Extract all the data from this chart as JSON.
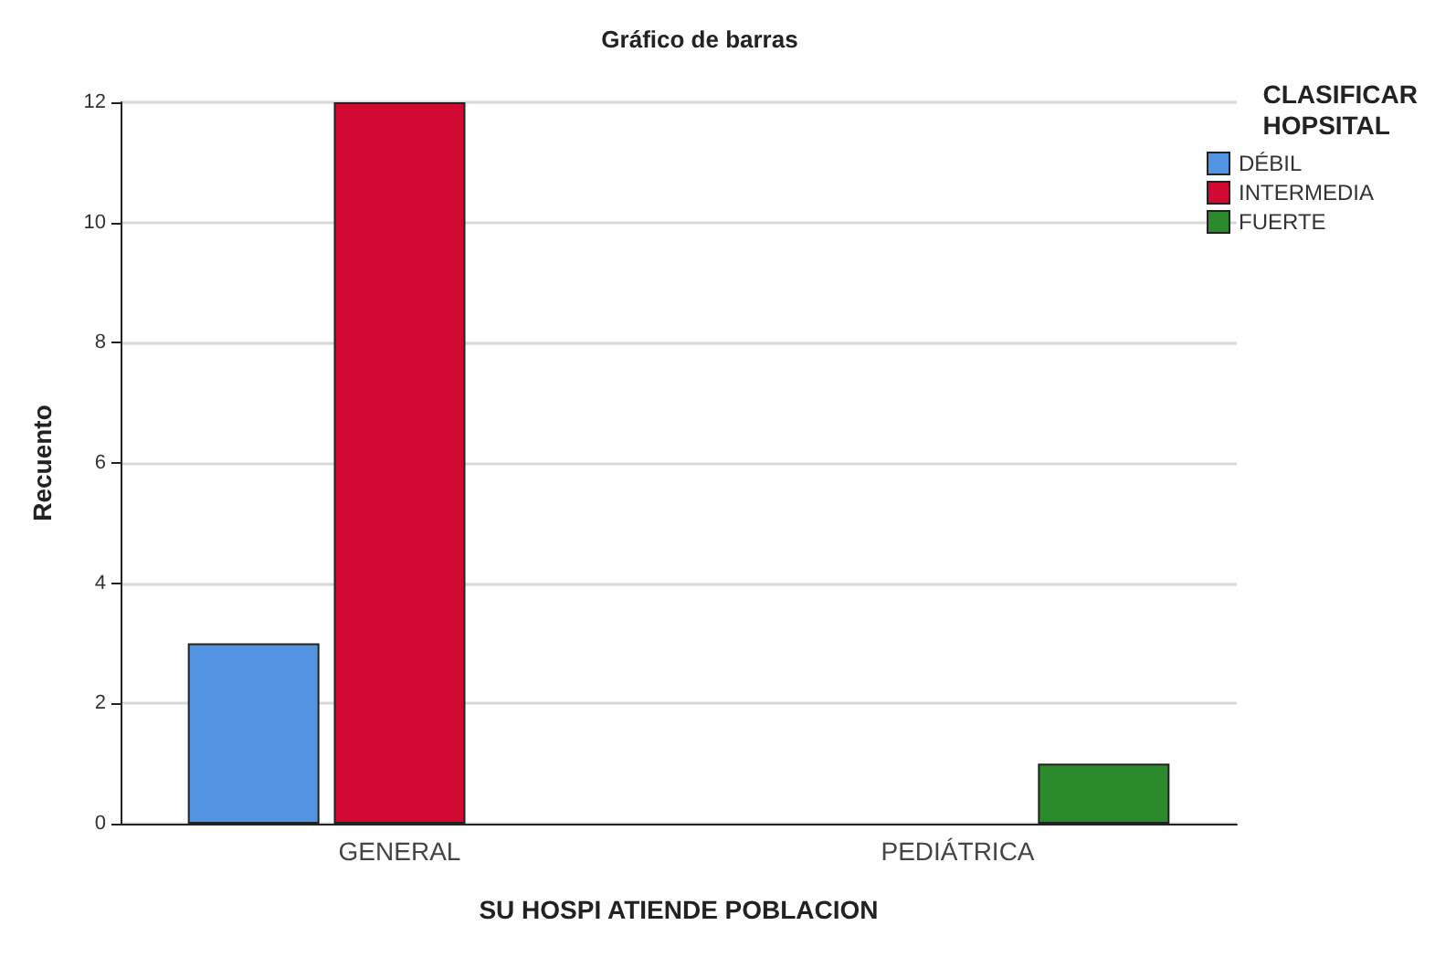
{
  "chart_data": {
    "type": "bar",
    "title": "Gráfico de barras",
    "xlabel": "SU HOSPI ATIENDE POBLACION",
    "ylabel": "Recuento",
    "legend_title": "CLASIFICAR\nHOPSITAL",
    "categories": [
      "GENERAL",
      "PEDIÁTRICA"
    ],
    "series": [
      {
        "name": "DÉBIL",
        "color": "#5294e2",
        "values": [
          3,
          null
        ]
      },
      {
        "name": "INTERMEDIA",
        "color": "#d20a32",
        "values": [
          12,
          null
        ]
      },
      {
        "name": "FUERTE",
        "color": "#2b8a2b",
        "values": [
          null,
          1
        ]
      }
    ],
    "ylim": [
      0,
      12
    ],
    "yticks": [
      0,
      2,
      4,
      6,
      8,
      10,
      12
    ],
    "grid": "y",
    "legend": "top right"
  }
}
